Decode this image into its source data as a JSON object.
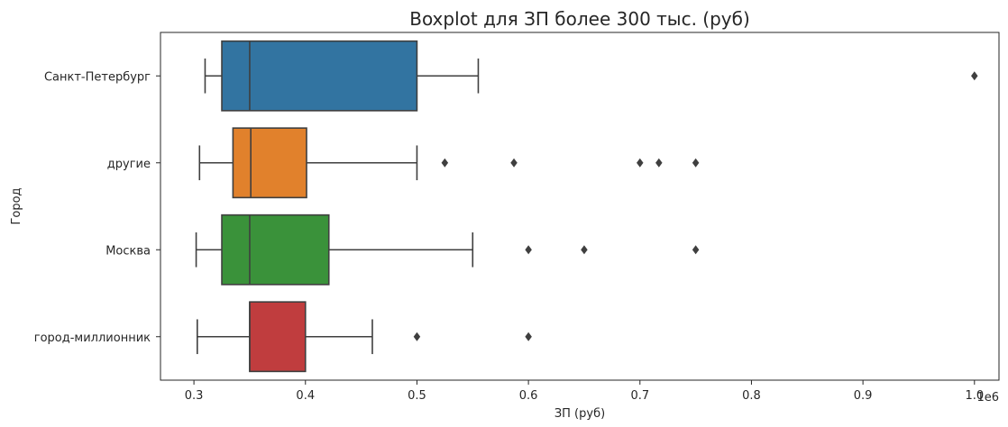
{
  "chart_data": {
    "type": "boxplot",
    "orientation": "horizontal",
    "title": "Boxplot для ЗП более 300 тыс. (руб)",
    "xlabel": "ЗП (руб)",
    "ylabel": "Город",
    "x_offset_text": "1e6",
    "xlim": [
      0.27,
      1.022
    ],
    "xticks": [
      0.3,
      0.4,
      0.5,
      0.6,
      0.7,
      0.8,
      0.9,
      1.0
    ],
    "xtick_labels": [
      "0.3",
      "0.4",
      "0.5",
      "0.6",
      "0.7",
      "0.8",
      "0.9",
      "1.0"
    ],
    "categories": [
      "Санкт-Петербург",
      "другие",
      "Москва",
      "город-миллионник"
    ],
    "series": [
      {
        "whisker_low": 0.31,
        "q1": 0.325,
        "median": 0.35,
        "q3": 0.5,
        "whisker_high": 0.555,
        "outliers": [
          1.0
        ],
        "color": "#3274a1"
      },
      {
        "whisker_low": 0.305,
        "q1": 0.335,
        "median": 0.351,
        "q3": 0.401,
        "whisker_high": 0.5,
        "outliers": [
          0.525,
          0.587,
          0.7,
          0.717,
          0.75
        ],
        "color": "#e1812c"
      },
      {
        "whisker_low": 0.302,
        "q1": 0.325,
        "median": 0.35,
        "q3": 0.421,
        "whisker_high": 0.55,
        "outliers": [
          0.6,
          0.65,
          0.75
        ],
        "color": "#3a923a"
      },
      {
        "whisker_low": 0.303,
        "q1": 0.35,
        "median": 0.35,
        "q3": 0.4,
        "whisker_high": 0.46,
        "outliers": [
          0.5,
          0.6
        ],
        "color": "#c03d3e"
      }
    ]
  }
}
